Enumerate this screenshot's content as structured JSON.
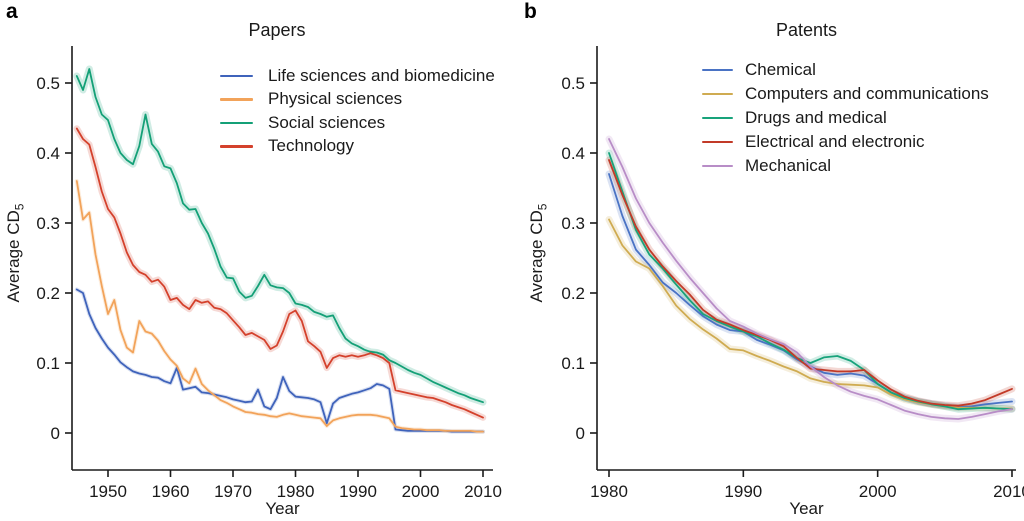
{
  "figure": {
    "background": "#ffffff",
    "text_color": "#1a1a1a",
    "axis_color": "#1a1a1a"
  },
  "panels": [
    {
      "letter": "a",
      "title": "Papers",
      "x_label": "Year",
      "y_label": "Average CD",
      "y_label_sub": "5"
    },
    {
      "letter": "b",
      "title": "Patents",
      "x_label": "Year",
      "y_label": "Average CD",
      "y_label_sub": "5"
    }
  ],
  "chart_data": [
    {
      "type": "line",
      "title": "Papers",
      "xlabel": "Year",
      "ylabel": "Average CD5",
      "x_range": [
        1945,
        2010
      ],
      "ylim": [
        0,
        0.545
      ],
      "x_ticks": [
        1950,
        1960,
        1970,
        1980,
        1990,
        2000,
        2010
      ],
      "x_tick_labels": [
        "1950",
        "1960",
        "1970",
        "1980",
        "1990",
        "2000",
        "2010"
      ],
      "y_ticks": [
        0,
        0.1,
        0.2,
        0.3,
        0.4,
        0.5
      ],
      "y_tick_labels": [
        "0",
        "0.1",
        "0.2",
        "0.3",
        "0.4",
        "0.5"
      ],
      "grid": false,
      "legend_position": "top-right-inside",
      "confidence_bands": true,
      "x_start": 1945,
      "series": [
        {
          "name": "Life sciences and biomedicine",
          "color": "#3f63bb",
          "values": [
            0.205,
            0.2,
            0.17,
            0.15,
            0.135,
            0.122,
            0.112,
            0.101,
            0.094,
            0.088,
            0.085,
            0.083,
            0.08,
            0.079,
            0.074,
            0.071,
            0.093,
            0.062,
            0.064,
            0.066,
            0.058,
            0.057,
            0.055,
            0.053,
            0.051,
            0.048,
            0.046,
            0.044,
            0.045,
            0.062,
            0.038,
            0.034,
            0.05,
            0.08,
            0.06,
            0.052,
            0.051,
            0.05,
            0.048,
            0.044,
            0.014,
            0.042,
            0.05,
            0.053,
            0.056,
            0.058,
            0.061,
            0.064,
            0.07,
            0.068,
            0.063,
            0.005,
            0.004,
            0.003,
            0.003,
            0.003,
            0.003,
            0.003,
            0.003,
            0.003,
            0.002,
            0.002,
            0.002,
            0.002,
            0.002,
            0.002
          ]
        },
        {
          "name": "Physical sciences",
          "color": "#f2a35a",
          "values": [
            0.36,
            0.305,
            0.315,
            0.255,
            0.21,
            0.17,
            0.19,
            0.147,
            0.122,
            0.115,
            0.16,
            0.145,
            0.142,
            0.132,
            0.117,
            0.105,
            0.096,
            0.078,
            0.071,
            0.092,
            0.07,
            0.061,
            0.054,
            0.047,
            0.043,
            0.038,
            0.034,
            0.03,
            0.029,
            0.027,
            0.026,
            0.024,
            0.023,
            0.026,
            0.028,
            0.026,
            0.024,
            0.023,
            0.022,
            0.021,
            0.01,
            0.018,
            0.021,
            0.023,
            0.025,
            0.026,
            0.026,
            0.026,
            0.025,
            0.023,
            0.021,
            0.009,
            0.007,
            0.006,
            0.005,
            0.005,
            0.004,
            0.004,
            0.004,
            0.003,
            0.003,
            0.003,
            0.003,
            0.003,
            0.002,
            0.002
          ]
        },
        {
          "name": "Social sciences",
          "color": "#14a077",
          "values": [
            0.51,
            0.49,
            0.52,
            0.48,
            0.455,
            0.447,
            0.42,
            0.4,
            0.39,
            0.384,
            0.41,
            0.455,
            0.413,
            0.402,
            0.381,
            0.378,
            0.357,
            0.328,
            0.319,
            0.32,
            0.3,
            0.285,
            0.263,
            0.238,
            0.222,
            0.221,
            0.202,
            0.193,
            0.196,
            0.21,
            0.226,
            0.211,
            0.208,
            0.207,
            0.2,
            0.185,
            0.183,
            0.18,
            0.173,
            0.17,
            0.166,
            0.168,
            0.15,
            0.135,
            0.128,
            0.124,
            0.119,
            0.116,
            0.115,
            0.112,
            0.104,
            0.1,
            0.095,
            0.09,
            0.086,
            0.083,
            0.078,
            0.073,
            0.069,
            0.065,
            0.061,
            0.057,
            0.054,
            0.05,
            0.047,
            0.044
          ]
        },
        {
          "name": "Technology",
          "color": "#d4412c",
          "values": [
            0.435,
            0.42,
            0.412,
            0.38,
            0.345,
            0.32,
            0.308,
            0.285,
            0.258,
            0.24,
            0.23,
            0.226,
            0.216,
            0.219,
            0.209,
            0.19,
            0.193,
            0.183,
            0.177,
            0.19,
            0.186,
            0.188,
            0.179,
            0.177,
            0.171,
            0.161,
            0.151,
            0.14,
            0.143,
            0.138,
            0.133,
            0.12,
            0.125,
            0.145,
            0.17,
            0.175,
            0.16,
            0.131,
            0.124,
            0.116,
            0.093,
            0.107,
            0.111,
            0.109,
            0.111,
            0.109,
            0.111,
            0.114,
            0.111,
            0.107,
            0.1,
            0.061,
            0.059,
            0.057,
            0.055,
            0.053,
            0.051,
            0.05,
            0.047,
            0.044,
            0.04,
            0.037,
            0.034,
            0.03,
            0.026,
            0.022
          ]
        }
      ]
    },
    {
      "type": "line",
      "title": "Patents",
      "xlabel": "Year",
      "ylabel": "Average CD5",
      "x_range": [
        1980,
        2010
      ],
      "ylim": [
        0,
        0.545
      ],
      "x_ticks": [
        1980,
        1990,
        2000,
        2010
      ],
      "x_tick_labels": [
        "1980",
        "1990",
        "2000",
        "2010"
      ],
      "y_ticks": [
        0,
        0.1,
        0.2,
        0.3,
        0.4,
        0.5
      ],
      "y_tick_labels": [
        "0",
        "0.1",
        "0.2",
        "0.3",
        "0.4",
        "0.5"
      ],
      "grid": false,
      "legend_position": "top-right-inside",
      "confidence_bands": true,
      "x_start": 1980,
      "series": [
        {
          "name": "Chemical",
          "color": "#4a73c4",
          "values": [
            0.37,
            0.31,
            0.262,
            0.24,
            0.215,
            0.2,
            0.183,
            0.167,
            0.155,
            0.147,
            0.145,
            0.133,
            0.126,
            0.118,
            0.105,
            0.095,
            0.086,
            0.083,
            0.085,
            0.082,
            0.07,
            0.058,
            0.05,
            0.045,
            0.042,
            0.039,
            0.037,
            0.038,
            0.041,
            0.043,
            0.045
          ]
        },
        {
          "name": "Computers and communications",
          "color": "#cfab51",
          "values": [
            0.305,
            0.268,
            0.245,
            0.235,
            0.21,
            0.182,
            0.163,
            0.148,
            0.135,
            0.12,
            0.118,
            0.11,
            0.103,
            0.095,
            0.088,
            0.078,
            0.073,
            0.07,
            0.069,
            0.068,
            0.065,
            0.055,
            0.048,
            0.044,
            0.041,
            0.038,
            0.036,
            0.036,
            0.036,
            0.035,
            0.035
          ]
        },
        {
          "name": "Drugs and medical",
          "color": "#18a37b",
          "values": [
            0.4,
            0.345,
            0.29,
            0.255,
            0.235,
            0.212,
            0.19,
            0.17,
            0.16,
            0.152,
            0.145,
            0.138,
            0.128,
            0.119,
            0.107,
            0.1,
            0.108,
            0.11,
            0.103,
            0.09,
            0.07,
            0.058,
            0.05,
            0.045,
            0.041,
            0.038,
            0.034,
            0.035,
            0.036,
            0.035,
            0.034
          ]
        },
        {
          "name": "Electrical and electronic",
          "color": "#c23a28",
          "values": [
            0.39,
            0.34,
            0.295,
            0.262,
            0.238,
            0.217,
            0.198,
            0.176,
            0.162,
            0.155,
            0.147,
            0.14,
            0.133,
            0.124,
            0.107,
            0.092,
            0.09,
            0.088,
            0.088,
            0.09,
            0.075,
            0.062,
            0.052,
            0.046,
            0.042,
            0.04,
            0.039,
            0.042,
            0.047,
            0.055,
            0.063
          ]
        },
        {
          "name": "Mechanical",
          "color": "#b88dc7",
          "values": [
            0.42,
            0.38,
            0.335,
            0.3,
            0.272,
            0.246,
            0.222,
            0.2,
            0.178,
            0.16,
            0.152,
            0.142,
            0.134,
            0.127,
            0.115,
            0.095,
            0.08,
            0.068,
            0.059,
            0.053,
            0.048,
            0.04,
            0.032,
            0.027,
            0.023,
            0.021,
            0.02,
            0.023,
            0.027,
            0.031,
            0.034
          ]
        }
      ]
    }
  ]
}
